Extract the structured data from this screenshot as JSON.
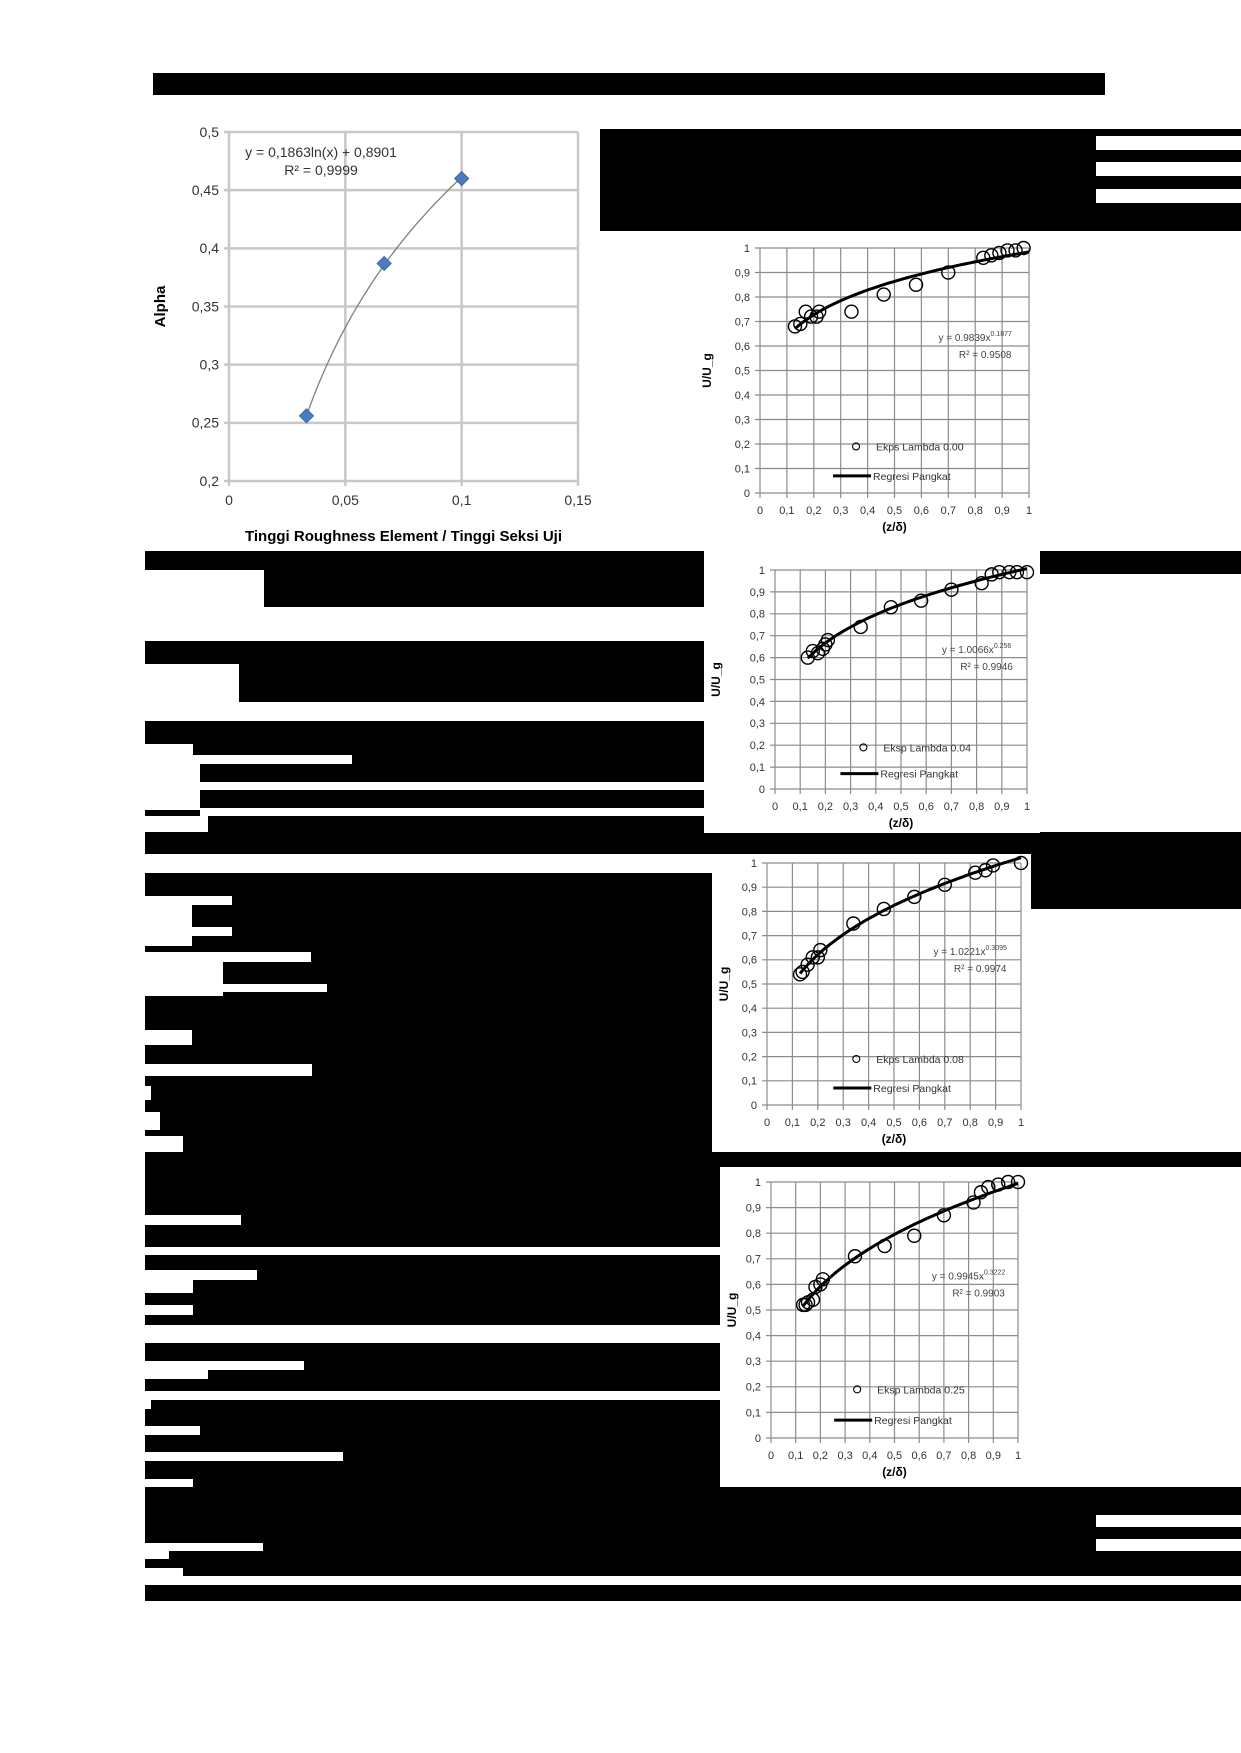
{
  "document": {
    "redacted_note": "Page content is largely redacted with black bars; only figures are visible."
  },
  "colors": {
    "marker_blue": "#4a7cc0",
    "trend_gray": "#7f7f7f",
    "grid_gray": "#c8c8c8",
    "grid_dark": "#8c8c8c",
    "redaction": "#000000"
  },
  "chart_data": [
    {
      "id": "alpha-vs-roughness",
      "type": "scatter",
      "title": "",
      "xlabel": "Tinggi Roughness Element / Tinggi Seksi Uji",
      "ylabel": "Alpha",
      "xlim": [
        0,
        0.15
      ],
      "ylim": [
        0.2,
        0.5
      ],
      "xticks": [
        "0",
        "0,05",
        "0,1",
        "0,15"
      ],
      "yticks": [
        "0,2",
        "0,25",
        "0,3",
        "0,35",
        "0,4",
        "0,45",
        "0,5"
      ],
      "grid": true,
      "series": [
        {
          "name": "Alpha",
          "marker": "diamond",
          "x": [
            0.0333,
            0.0667,
            0.1
          ],
          "y": [
            0.256,
            0.387,
            0.46
          ]
        }
      ],
      "trendline": {
        "type": "logarithmic",
        "a": 0.1863,
        "b": 0.8901
      },
      "annotations": [
        "y = 0,1863ln(x) + 0,8901",
        "R² = 0,9999"
      ]
    },
    {
      "id": "profile-lambda-000",
      "type": "scatter",
      "xlabel": "(z/δ)",
      "ylabel": "U/U_g",
      "xlim": [
        0,
        1
      ],
      "ylim": [
        0,
        1
      ],
      "xticks": [
        "0",
        "0,1",
        "0,2",
        "0,3",
        "0,4",
        "0,5",
        "0,6",
        "0,7",
        "0,8",
        "0,9",
        "1"
      ],
      "yticks": [
        "0",
        "0,1",
        "0,2",
        "0,3",
        "0,4",
        "0,5",
        "0,6",
        "0,7",
        "0,8",
        "0,9",
        "1"
      ],
      "grid": true,
      "series": [
        {
          "name": "Ekps Lambda 0.00",
          "marker": "open-circle",
          "x": [
            0.13,
            0.15,
            0.17,
            0.19,
            0.21,
            0.22,
            0.34,
            0.46,
            0.58,
            0.7,
            0.83,
            0.86,
            0.89,
            0.92,
            0.95,
            0.98
          ],
          "y": [
            0.68,
            0.69,
            0.74,
            0.72,
            0.72,
            0.74,
            0.74,
            0.81,
            0.85,
            0.9,
            0.96,
            0.97,
            0.98,
            0.99,
            0.99,
            1.0
          ]
        }
      ],
      "trendline": {
        "name": "Regresi Pangkat",
        "type": "power",
        "a": 0.9839,
        "b": 0.1877
      },
      "annotations": [
        "y = 0.9839x^0.1877",
        "R² = 0.9508"
      ],
      "legend": [
        "Ekps Lambda 0.00",
        "Regresi Pangkat"
      ]
    },
    {
      "id": "profile-lambda-004",
      "type": "scatter",
      "xlabel": "(z/δ)",
      "ylabel": "U/U_g",
      "xlim": [
        0,
        1
      ],
      "ylim": [
        0,
        1
      ],
      "xticks": [
        "0",
        "0,1",
        "0,2",
        "0,3",
        "0,4",
        "0,5",
        "0,6",
        "0,7",
        "0,8",
        "0,9",
        "1"
      ],
      "yticks": [
        "0",
        "0,1",
        "0,2",
        "0,3",
        "0,4",
        "0,5",
        "0,6",
        "0,7",
        "0,8",
        "0,9",
        "1"
      ],
      "grid": true,
      "series": [
        {
          "name": "Eksp Lambda 0.04",
          "marker": "open-circle",
          "x": [
            0.13,
            0.15,
            0.17,
            0.19,
            0.2,
            0.21,
            0.34,
            0.46,
            0.58,
            0.7,
            0.82,
            0.86,
            0.89,
            0.93,
            0.96,
            1.0
          ],
          "y": [
            0.6,
            0.63,
            0.62,
            0.64,
            0.66,
            0.68,
            0.74,
            0.83,
            0.86,
            0.91,
            0.94,
            0.98,
            0.99,
            0.99,
            0.99,
            0.99
          ]
        }
      ],
      "trendline": {
        "name": "Regresi Pangkat",
        "type": "power",
        "a": 1.0066,
        "b": 0.256
      },
      "annotations": [
        "y = 1.0066x^0.256",
        "R² = 0.9946"
      ],
      "legend": [
        "Eksp Lambda 0.04",
        "Regresi Pangkat"
      ]
    },
    {
      "id": "profile-lambda-008",
      "type": "scatter",
      "xlabel": "(z/δ)",
      "ylabel": "U/U_g",
      "xlim": [
        0,
        1
      ],
      "ylim": [
        0,
        1
      ],
      "xticks": [
        "0",
        "0,1",
        "0,2",
        "0,3",
        "0,4",
        "0,5",
        "0,6",
        "0,7",
        "0,8",
        "0,9",
        "1"
      ],
      "yticks": [
        "0",
        "0,1",
        "0,2",
        "0,3",
        "0,4",
        "0,5",
        "0,6",
        "0,7",
        "0,8",
        "0,9",
        "1"
      ],
      "grid": true,
      "series": [
        {
          "name": "Ekps Lambda 0.08",
          "marker": "open-circle",
          "x": [
            0.13,
            0.14,
            0.16,
            0.18,
            0.2,
            0.21,
            0.34,
            0.46,
            0.58,
            0.7,
            0.82,
            0.86,
            0.89,
            1.0
          ],
          "y": [
            0.54,
            0.55,
            0.58,
            0.61,
            0.61,
            0.64,
            0.75,
            0.81,
            0.86,
            0.91,
            0.96,
            0.97,
            0.99,
            1.0
          ]
        }
      ],
      "trendline": {
        "name": "Regresi Pangkat",
        "type": "power",
        "a": 1.0221,
        "b": 0.3095
      },
      "annotations": [
        "y = 1.0221x^0.3095",
        "R² = 0.9974"
      ],
      "legend": [
        "Ekps Lambda 0.08",
        "Regresi Pangkat"
      ]
    },
    {
      "id": "profile-lambda-025",
      "type": "scatter",
      "xlabel": "(z/δ)",
      "ylabel": "U/U_g",
      "xlim": [
        0,
        1
      ],
      "ylim": [
        0,
        1
      ],
      "xticks": [
        "0",
        "0,1",
        "0,2",
        "0,3",
        "0,4",
        "0,5",
        "0,6",
        "0,7",
        "0,8",
        "0,9",
        "1"
      ],
      "yticks": [
        "0",
        "0,1",
        "0,2",
        "0,3",
        "0,4",
        "0,5",
        "0,6",
        "0,7",
        "0,8",
        "0,9",
        "1"
      ],
      "grid": true,
      "series": [
        {
          "name": "Eksp Lambda 0.25",
          "marker": "open-circle",
          "x": [
            0.13,
            0.14,
            0.15,
            0.17,
            0.18,
            0.2,
            0.21,
            0.34,
            0.46,
            0.58,
            0.7,
            0.82,
            0.85,
            0.88,
            0.92,
            0.96,
            1.0
          ],
          "y": [
            0.52,
            0.52,
            0.53,
            0.54,
            0.59,
            0.6,
            0.62,
            0.71,
            0.75,
            0.79,
            0.87,
            0.92,
            0.96,
            0.98,
            0.99,
            1.0,
            1.0
          ]
        }
      ],
      "trendline": {
        "name": "Regresi Pangkat",
        "type": "power",
        "a": 0.9945,
        "b": 0.3222
      },
      "annotations": [
        "y = 0.9945x^0.3222",
        "R² = 0.9903"
      ],
      "legend": [
        "Eksp Lambda 0.25",
        "Regresi Pangkat"
      ]
    }
  ]
}
